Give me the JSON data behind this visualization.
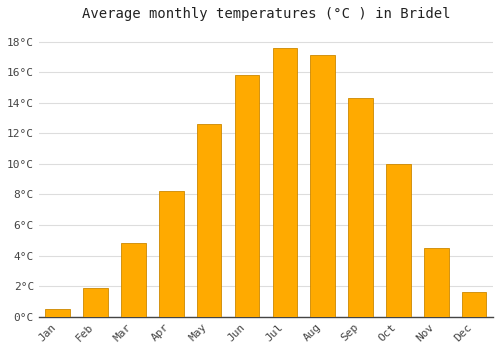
{
  "title": "Average monthly temperatures (°C ) in Bridel",
  "months": [
    "Jan",
    "Feb",
    "Mar",
    "Apr",
    "May",
    "Jun",
    "Jul",
    "Aug",
    "Sep",
    "Oct",
    "Nov",
    "Dec"
  ],
  "temperatures": [
    0.5,
    1.9,
    4.8,
    8.2,
    12.6,
    15.8,
    17.6,
    17.1,
    14.3,
    10.0,
    4.5,
    1.6
  ],
  "bar_color": "#FFAA00",
  "bar_edge_color": "#CC8800",
  "background_color": "#FFFFFF",
  "plot_bg_color": "#FFFFFF",
  "grid_color": "#DDDDDD",
  "ylim": [
    0,
    19
  ],
  "yticks": [
    0,
    2,
    4,
    6,
    8,
    10,
    12,
    14,
    16,
    18
  ],
  "title_fontsize": 10,
  "tick_fontsize": 8,
  "tick_font": "monospace",
  "bar_width": 0.65
}
